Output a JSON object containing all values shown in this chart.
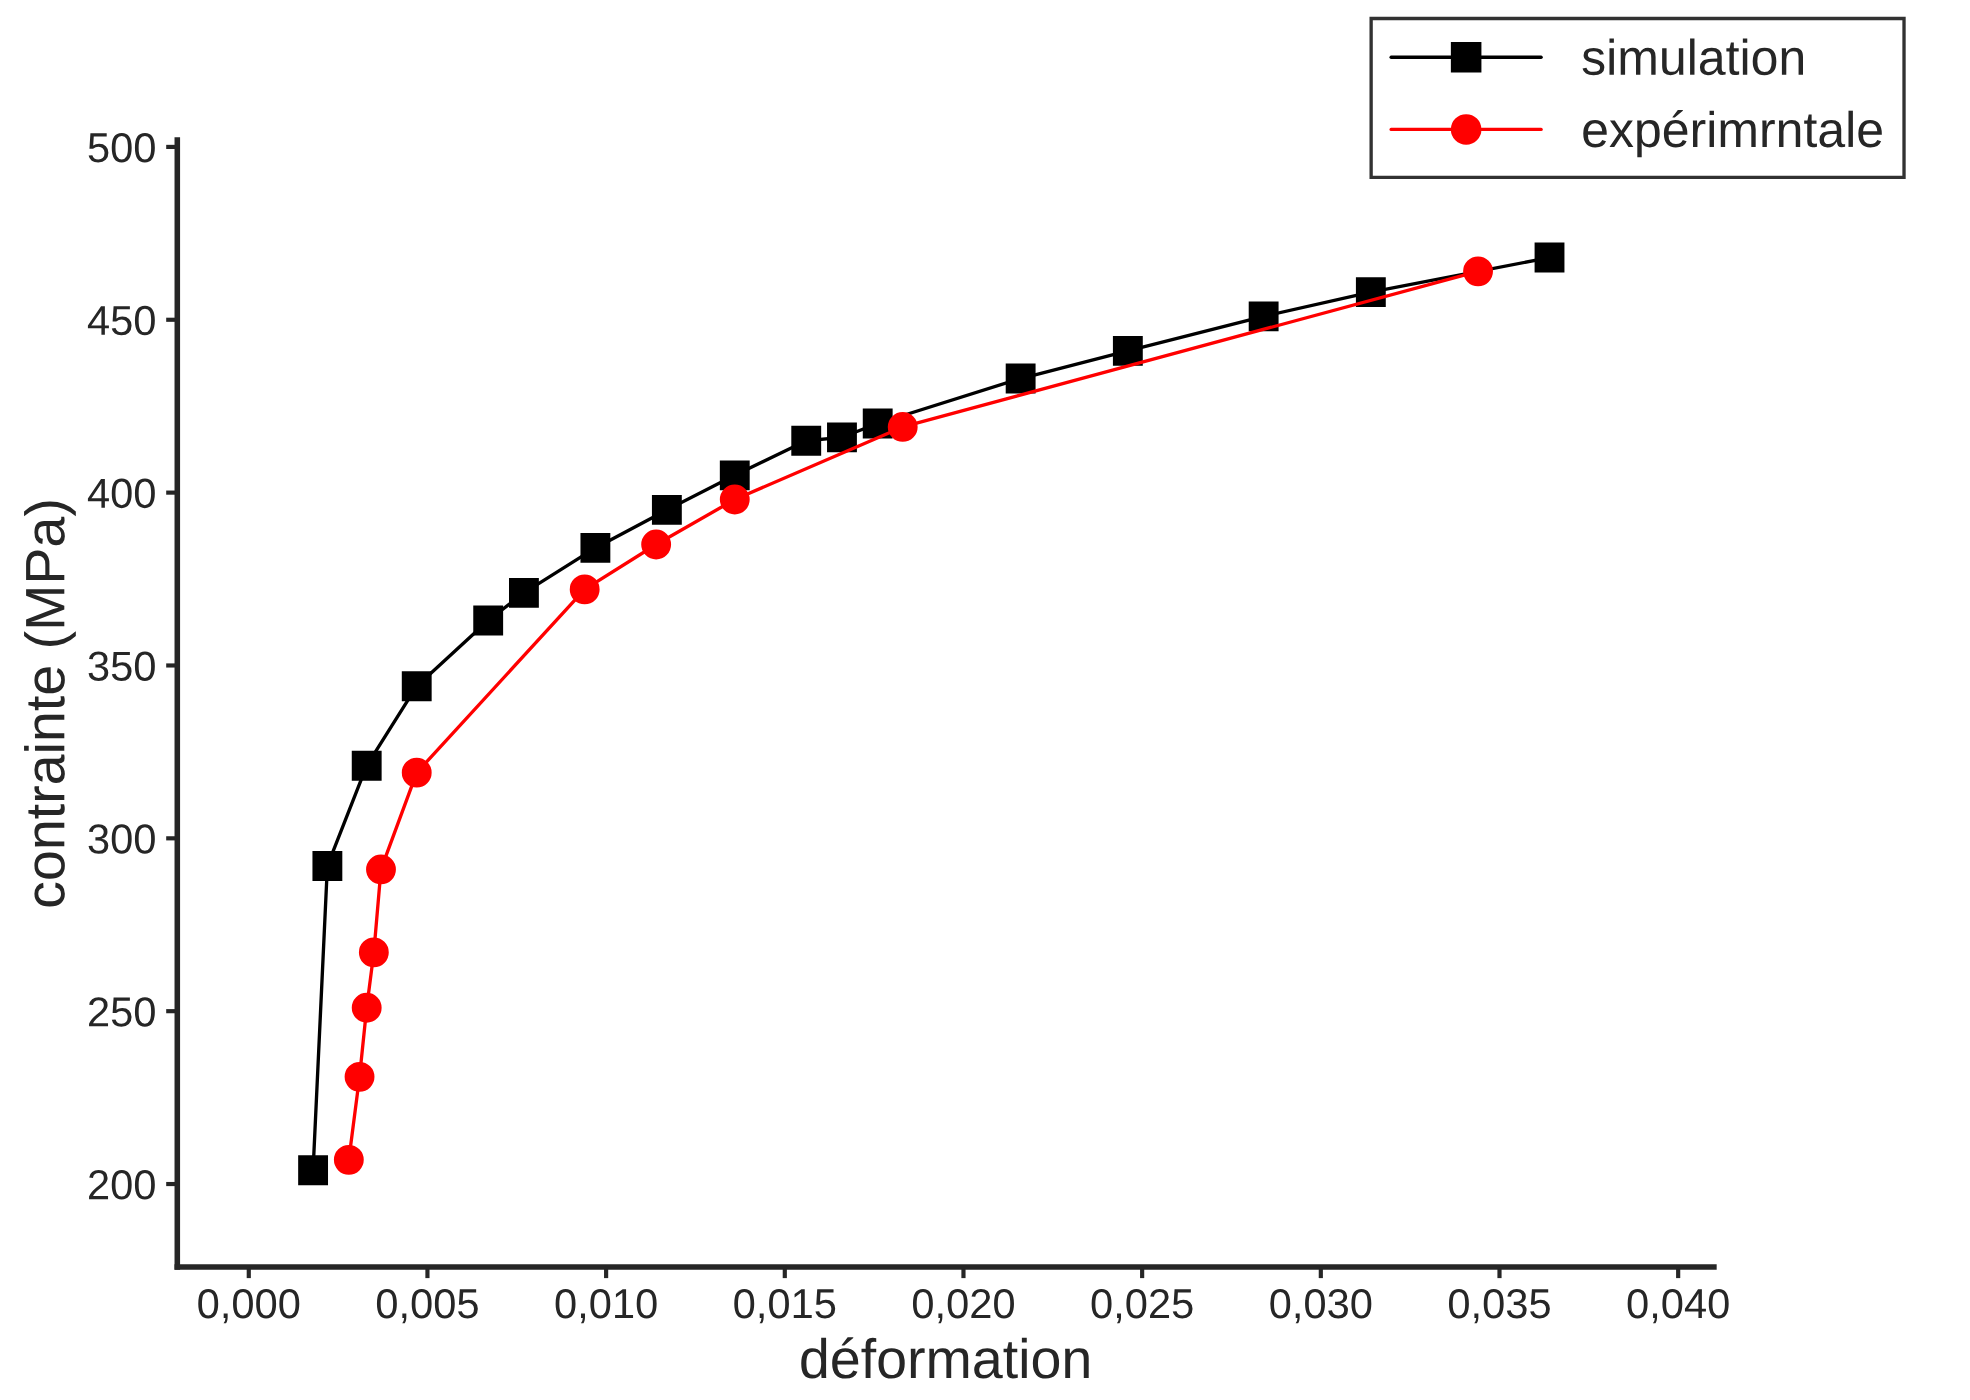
{
  "chart_data": {
    "type": "line",
    "xlabel": "déformation",
    "ylabel": "contrainte (MPa)",
    "xlim": [
      -0.002,
      0.041
    ],
    "ylim": [
      176,
      502
    ],
    "xticks": [
      {
        "value": 0,
        "label": "0,000"
      },
      {
        "value": 0.005,
        "label": "0,005"
      },
      {
        "value": 0.01,
        "label": "0,010"
      },
      {
        "value": 0.015,
        "label": "0,015"
      },
      {
        "value": 0.02,
        "label": "0,020"
      },
      {
        "value": 0.025,
        "label": "0,025"
      },
      {
        "value": 0.03,
        "label": "0,030"
      },
      {
        "value": 0.035,
        "label": "0,035"
      },
      {
        "value": 0.04,
        "label": "0,040"
      }
    ],
    "yticks": [
      200,
      250,
      300,
      350,
      400,
      450,
      500
    ],
    "grid": false,
    "legend": "top right",
    "series": [
      {
        "name": "simulation",
        "color": "#000000",
        "marker": "square",
        "x": [
          0.0018,
          0.0022,
          0.0033,
          0.0047,
          0.0067,
          0.0077,
          0.0097,
          0.0117,
          0.0136,
          0.0156,
          0.0166,
          0.0176,
          0.0216,
          0.0246,
          0.0284,
          0.0314,
          0.0364
        ],
        "values": [
          204,
          292,
          321,
          344,
          363,
          371,
          384,
          395,
          405,
          415,
          416,
          420,
          433,
          441,
          451,
          458,
          468
        ]
      },
      {
        "name": "expérimrntale",
        "color": "#ff0000",
        "marker": "circle",
        "x": [
          0.0028,
          0.0031,
          0.0033,
          0.0035,
          0.0037,
          0.0047,
          0.0094,
          0.0114,
          0.0136,
          0.0183,
          0.0344
        ],
        "values": [
          207,
          231,
          251,
          267,
          291,
          319,
          372,
          385,
          398,
          419,
          464
        ]
      }
    ]
  }
}
